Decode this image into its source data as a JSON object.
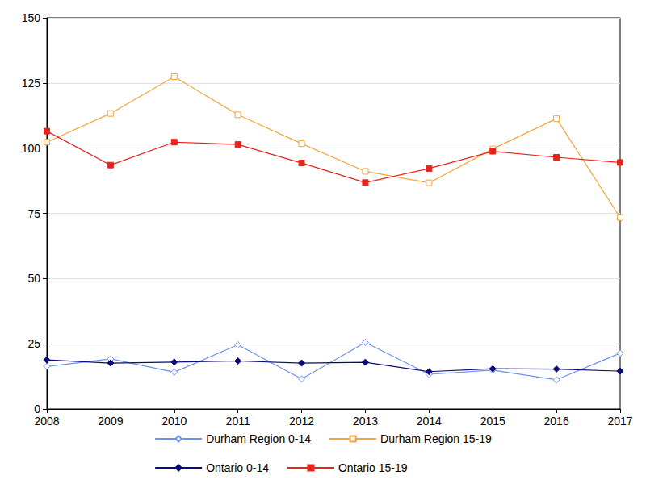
{
  "chart_data": {
    "type": "line",
    "categories": [
      "2008",
      "2009",
      "2010",
      "2011",
      "2012",
      "2013",
      "2014",
      "2015",
      "2016",
      "2017"
    ],
    "series": [
      {
        "name": "Durham Region 0-14",
        "color": "#6b93ee",
        "marker": "diamond_open",
        "values": [
          16.3,
          19.2,
          14.1,
          24.6,
          11.5,
          25.5,
          13.3,
          14.9,
          11.2,
          21.4
        ]
      },
      {
        "name": "Durham Region 15-19",
        "color": "#f5a53a",
        "marker": "square_open",
        "values": [
          102.3,
          113.3,
          127.4,
          112.8,
          101.7,
          91.1,
          86.7,
          99.7,
          111.3,
          73.4
        ]
      },
      {
        "name": "Ontario 0-14",
        "color": "#0b0b78",
        "marker": "diamond",
        "values": [
          18.8,
          17.6,
          18.0,
          18.4,
          17.6,
          17.9,
          14.3,
          15.4,
          15.3,
          14.5
        ]
      },
      {
        "name": "Ontario 15-19",
        "color": "#e8231c",
        "marker": "square",
        "values": [
          106.5,
          93.5,
          102.3,
          101.4,
          94.3,
          86.8,
          92.2,
          98.8,
          96.5,
          94.5
        ]
      }
    ],
    "ylim": [
      0,
      150
    ],
    "yticks": [
      0,
      25,
      50,
      75,
      100,
      125,
      150
    ],
    "grid": true,
    "legend": "bottom"
  }
}
